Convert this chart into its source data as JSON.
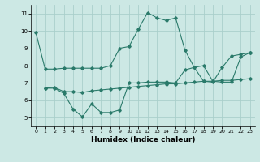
{
  "xlabel": "Humidex (Indice chaleur)",
  "bg_color": "#cce8e4",
  "grid_color": "#aacfcb",
  "line_color": "#2a7a6a",
  "ylim": [
    4.5,
    11.5
  ],
  "xlim": [
    -0.5,
    23.5
  ],
  "yticks": [
    5,
    6,
    7,
    8,
    9,
    10,
    11
  ],
  "xticks": [
    0,
    1,
    2,
    3,
    4,
    5,
    6,
    7,
    8,
    9,
    10,
    11,
    12,
    13,
    14,
    15,
    16,
    17,
    18,
    19,
    20,
    21,
    22,
    23
  ],
  "series1_x": [
    0,
    1,
    2,
    3,
    4,
    5,
    6,
    7,
    8,
    9,
    10,
    11,
    12,
    13,
    14,
    15,
    16,
    17,
    18,
    19,
    20,
    21,
    22,
    23
  ],
  "series1_y": [
    9.9,
    7.8,
    7.8,
    7.85,
    7.85,
    7.85,
    7.85,
    7.85,
    8.0,
    9.0,
    9.1,
    10.1,
    11.05,
    10.75,
    10.6,
    10.75,
    8.9,
    7.9,
    7.1,
    7.05,
    7.9,
    8.55,
    8.65,
    8.75
  ],
  "series2_x": [
    1,
    2,
    3,
    4,
    5,
    6,
    7,
    8,
    9,
    10,
    11,
    12,
    13,
    14,
    15,
    16,
    17,
    18,
    19,
    20,
    21,
    22,
    23
  ],
  "series2_y": [
    6.7,
    6.7,
    6.4,
    5.5,
    5.05,
    5.8,
    5.3,
    5.3,
    5.45,
    7.0,
    7.0,
    7.05,
    7.05,
    7.05,
    7.0,
    7.75,
    7.9,
    8.0,
    7.1,
    7.05,
    7.05,
    8.5,
    8.75
  ],
  "series3_x": [
    1,
    2,
    3,
    4,
    5,
    6,
    7,
    8,
    9,
    10,
    11,
    12,
    13,
    14,
    15,
    16,
    17,
    18,
    19,
    20,
    21,
    22,
    23
  ],
  "series3_y": [
    6.7,
    6.75,
    6.5,
    6.5,
    6.45,
    6.55,
    6.6,
    6.65,
    6.7,
    6.75,
    6.8,
    6.85,
    6.9,
    6.95,
    6.95,
    7.0,
    7.05,
    7.1,
    7.1,
    7.15,
    7.15,
    7.2,
    7.25
  ]
}
